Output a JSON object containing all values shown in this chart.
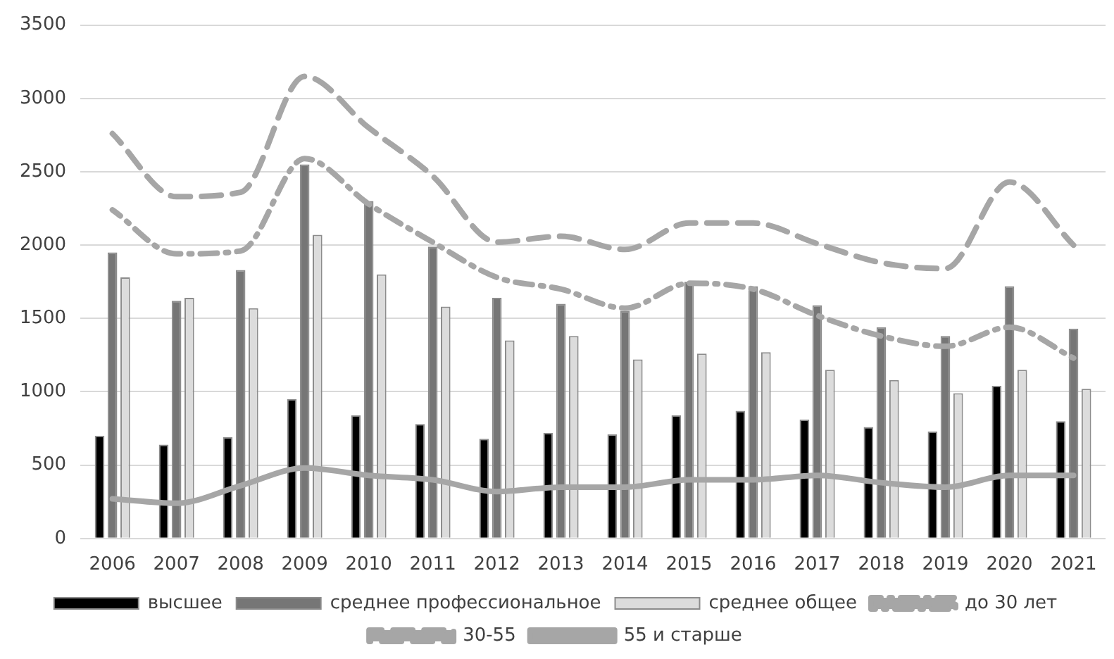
{
  "chart_data": {
    "type": "bar",
    "categories": [
      "2006",
      "2007",
      "2008",
      "2009",
      "2010",
      "2011",
      "2012",
      "2013",
      "2014",
      "2015",
      "2016",
      "2017",
      "2018",
      "2019",
      "2020",
      "2021"
    ],
    "series": [
      {
        "name": "высшее",
        "color": "#000000",
        "values": [
          700,
          640,
          690,
          950,
          840,
          780,
          680,
          720,
          710,
          840,
          870,
          810,
          760,
          730,
          1040,
          800
        ]
      },
      {
        "name": "среднее профессиональное",
        "color": "#767676",
        "values": [
          1950,
          1620,
          1830,
          2550,
          2300,
          1990,
          1640,
          1600,
          1550,
          1750,
          1720,
          1590,
          1440,
          1380,
          1720,
          1430
        ]
      },
      {
        "name": "среднее общее",
        "color": "#dcdcdc",
        "values": [
          1780,
          1640,
          1570,
          2070,
          1800,
          1580,
          1350,
          1380,
          1220,
          1260,
          1270,
          1150,
          1080,
          990,
          1150,
          1020
        ]
      },
      {
        "name": "до 30 лет",
        "type": "line",
        "line_style": "dashdot",
        "color": "#a6a6a6",
        "values": [
          2240,
          1940,
          1960,
          2590,
          2280,
          2020,
          1780,
          1700,
          1570,
          1740,
          1700,
          1520,
          1380,
          1310,
          1440,
          1230
        ]
      },
      {
        "name": "30-55",
        "type": "line",
        "line_style": "dashed",
        "color": "#a6a6a6",
        "values": [
          2760,
          2330,
          2360,
          3150,
          2800,
          2470,
          2020,
          2060,
          1970,
          2150,
          2150,
          2010,
          1880,
          1840,
          2430,
          2000
        ]
      },
      {
        "name": "55 и старше",
        "type": "line",
        "line_style": "solid",
        "color": "#a6a6a6",
        "values": [
          270,
          240,
          360,
          480,
          430,
          400,
          320,
          350,
          350,
          400,
          400,
          430,
          380,
          350,
          430,
          430
        ]
      }
    ],
    "ylim": [
      0,
      3500
    ],
    "yticks": [
      0,
      500,
      1000,
      1500,
      2000,
      2500,
      3000,
      3500
    ],
    "grid": "y",
    "legend": "bottom",
    "marker": "none"
  }
}
